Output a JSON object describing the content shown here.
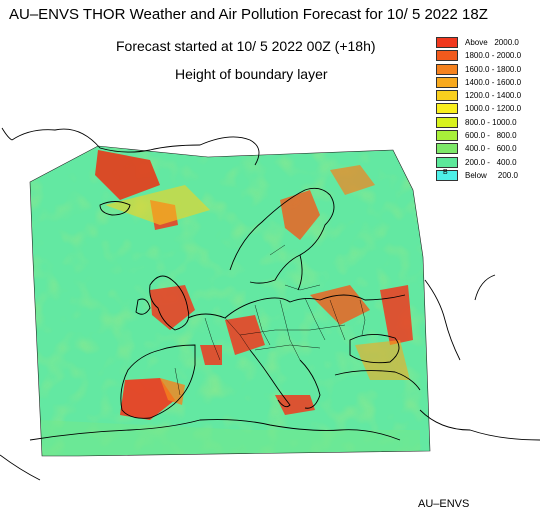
{
  "header": {
    "title": "AU–ENVS THOR Weather and Air Pollution Forecast for 10/ 5 2022  18Z",
    "forecast_started": "Forecast started at 10/ 5 2022  00Z (+18h)",
    "variable": "Height of boundary layer"
  },
  "legend": {
    "items": [
      {
        "label": "Above   2000.0",
        "color": "#f0381e"
      },
      {
        "label": "1800.0 - 2000.0",
        "color": "#f25a1c"
      },
      {
        "label": "1600.0 - 1800.0",
        "color": "#f5821e"
      },
      {
        "label": "1400.0 - 1600.0",
        "color": "#f7a91e"
      },
      {
        "label": "1200.0 - 1400.0",
        "color": "#f9cf1e"
      },
      {
        "label": "1000.0 - 1200.0",
        "color": "#f9ef1e"
      },
      {
        "label": "800.0 - 1000.0",
        "color": "#d8f21e"
      },
      {
        "label": "600.0 -   800.0",
        "color": "#a8f03a"
      },
      {
        "label": "400.0 -   600.0",
        "color": "#7de868"
      },
      {
        "label": "200.0 -   400.0",
        "color": "#5ce89a"
      },
      {
        "label": "Below     200.0",
        "color": "#4ef0e8",
        "marker": "B"
      }
    ]
  },
  "footer": {
    "label": "AU–ENVS"
  }
}
